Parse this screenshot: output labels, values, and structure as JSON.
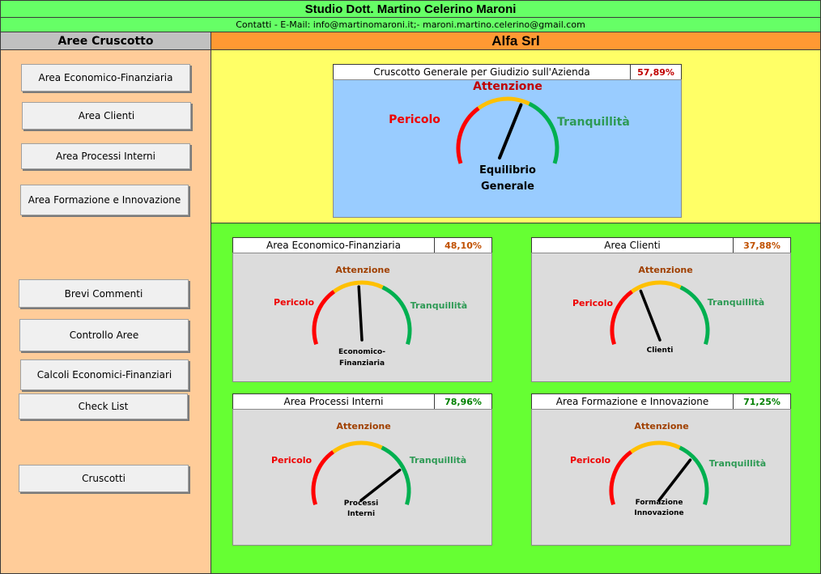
{
  "header": {
    "title": "Studio Dott. Martino Celerino Maroni",
    "contacts": "Contatti - E-Mail: info@martinomaroni.it;- maroni.martino.celerino@gmail.com"
  },
  "sidebar": {
    "title": "Aree Cruscotto",
    "buttons": [
      "Area Economico-Finanziaria",
      "Area Clienti",
      "Area Processi Interni",
      "Area Formazione e Innovazione",
      "Brevi Commenti",
      "Controllo Aree",
      "Calcoli Economici-Finanziari",
      "Check List",
      "Cruscotti"
    ]
  },
  "company": {
    "name": "Alfa Srl"
  },
  "zone_labels": {
    "danger": "Pericolo",
    "attention": "Attenzione",
    "calm": "Tranquillità"
  },
  "colors": {
    "danger": "#ff0000",
    "attention": "#ffc000",
    "calm": "#00b050",
    "danger_text": "#ee0000",
    "attention_text_main": "#c00000",
    "attention_text_small": "#a04000",
    "calm_text": "#2e9a55",
    "pct_main": "#c00000",
    "pct_orange": "#c05000",
    "pct_green": "#008000"
  },
  "gauges": {
    "main": {
      "title": "Cruscotto Generale per Giudizio sull'Azienda",
      "percent": "57,89%",
      "value": 0.5789,
      "caption_line1": "Equilibrio",
      "caption_line2": "Generale"
    },
    "economico": {
      "title": "Area Economico-Finanziaria",
      "percent": "48,10%",
      "value": 0.481,
      "caption_line1": "Economico-",
      "caption_line2": "Finanziaria"
    },
    "clienti": {
      "title": "Area Clienti",
      "percent": "37,88%",
      "value": 0.3788,
      "caption_line1": "Clienti",
      "caption_line2": ""
    },
    "processi": {
      "title": "Area Processi Interni",
      "percent": "78,96%",
      "value": 0.7896,
      "caption_line1": "Processi",
      "caption_line2": "Interni"
    },
    "formazione": {
      "title": "Area Formazione e Innovazione",
      "percent": "71,25%",
      "value": 0.7125,
      "caption_line1": "Formazione",
      "caption_line2": "Innovazione"
    }
  }
}
